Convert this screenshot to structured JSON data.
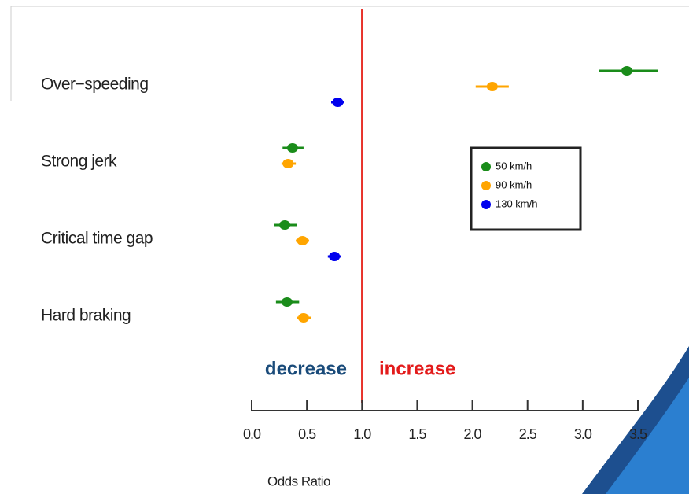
{
  "chart_data": {
    "type": "forest",
    "categories": [
      "Over−speeding",
      "Strong jerk",
      "Critical time gap",
      "Hard braking"
    ],
    "series": [
      {
        "name": "50 km/h",
        "color": "#1a8c1a",
        "values": [
          3.4,
          0.37,
          0.3,
          0.32
        ],
        "lower": [
          3.15,
          0.28,
          0.2,
          0.22
        ],
        "upper": [
          3.68,
          0.47,
          0.41,
          0.43
        ]
      },
      {
        "name": "90 km/h",
        "color": "#ffa500",
        "values": [
          2.18,
          0.33,
          0.46,
          0.47
        ],
        "lower": [
          2.03,
          0.27,
          0.4,
          0.41
        ],
        "upper": [
          2.33,
          0.4,
          0.52,
          0.54
        ]
      },
      {
        "name": "130 km/h",
        "color": "#0000ee",
        "values": [
          0.78,
          null,
          0.75,
          null
        ],
        "lower": [
          0.72,
          null,
          0.69,
          null
        ],
        "upper": [
          0.84,
          null,
          0.81,
          null
        ]
      }
    ],
    "xlabel": "Odds Ratio",
    "xlim": [
      0,
      3.5
    ],
    "xticks": [
      {
        "value": 0,
        "label": "0.0"
      },
      0.5,
      {
        "value": 1,
        "label": "1.0"
      },
      1.5,
      {
        "value": 2,
        "label": "2.0"
      },
      2.5,
      {
        "value": 3,
        "label": "3.0"
      },
      3.5
    ],
    "reference_line": 1,
    "reference_color": "#e8322a",
    "annotations": [
      {
        "text": "decrease",
        "color": "#1a4b7a"
      },
      {
        "text": "increase",
        "color": "#e31b1b"
      }
    ]
  }
}
